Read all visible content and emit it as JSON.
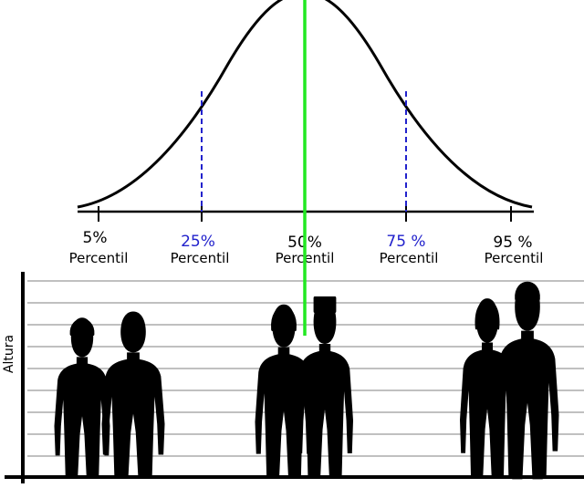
{
  "percentiles": [
    {
      "id": "p5",
      "value": "5%",
      "word": "Percentil",
      "highlight": false
    },
    {
      "id": "p25",
      "value": "25%",
      "word": "Percentil",
      "highlight": true
    },
    {
      "id": "p50",
      "value": "50%",
      "word": "Percentil",
      "highlight": false
    },
    {
      "id": "p75",
      "value": "75 %",
      "word": "Percentil",
      "highlight": true
    },
    {
      "id": "p95",
      "value": "95 %",
      "word": "Percentil",
      "highlight": false
    }
  ],
  "y_axis_label": "Altura",
  "colors": {
    "curve": "#000000",
    "median_line": "#22e822",
    "quartile_lines": "#2222cc",
    "highlight_text": "#2222cc",
    "gridlines": "#9a9a9a"
  }
}
